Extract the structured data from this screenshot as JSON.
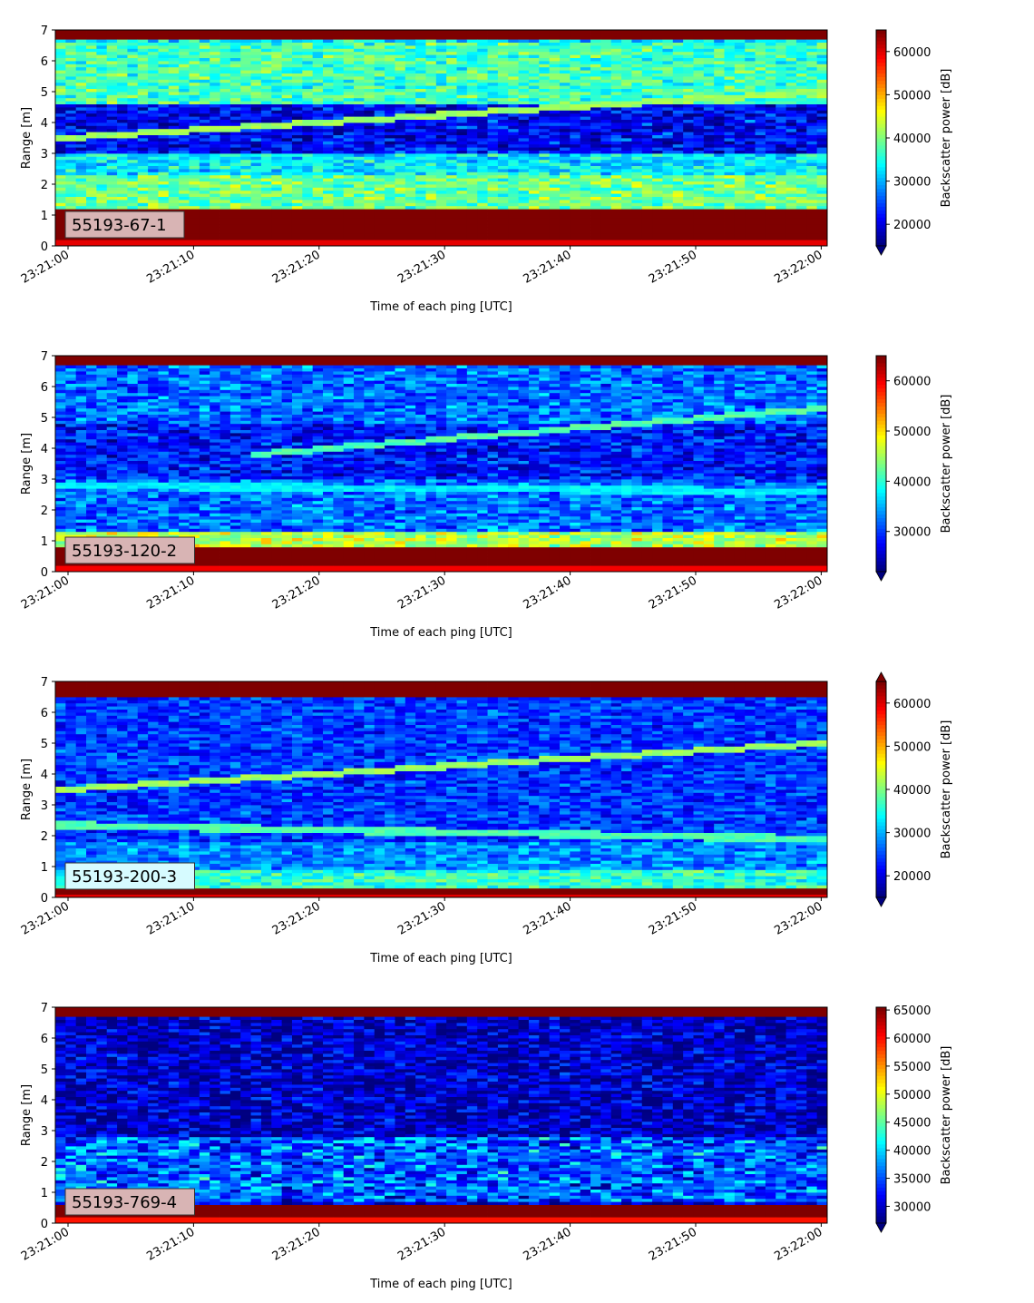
{
  "colors": {
    "jet": [
      "#00007f",
      "#0000ff",
      "#007fff",
      "#00ffff",
      "#7fff7f",
      "#ffff00",
      "#ff7f00",
      "#ff0000",
      "#7f0000"
    ],
    "label_box": "#d8b4b4",
    "label_box_alt": "#fff8c8",
    "label_box_cyan": "#d6fbff"
  },
  "chart_data": [
    {
      "type": "heatmap",
      "panel_label": "55193-67-1",
      "xlabel": "Time of each ping [UTC]",
      "ylabel": "Range [m]",
      "xticks": [
        "23:21:00",
        "23:21:10",
        "23:21:20",
        "23:21:30",
        "23:21:40",
        "23:21:50",
        "23:22:00"
      ],
      "yticks": [
        "0",
        "1",
        "2",
        "3",
        "4",
        "5",
        "6",
        "7"
      ],
      "ylim": [
        0,
        7
      ],
      "colorbar_label": "Backscatter power [dB]",
      "colorbar_ticks": [
        "20000",
        "30000",
        "40000",
        "50000",
        "60000"
      ],
      "colorbar_range": [
        15000,
        65000
      ],
      "colorbar_extend": "min",
      "label_style": "pink",
      "features": {
        "bottom_red_band": [
          0.2,
          1.15
        ],
        "top_red_band": [
          6.7,
          7.0
        ],
        "rising_track": {
          "start_range": 3.5,
          "end_range": 5.0
        },
        "background_low": 30000,
        "background_high": 36000
      }
    },
    {
      "type": "heatmap",
      "panel_label": "55193-120-2",
      "xlabel": "Time of each ping [UTC]",
      "ylabel": "Range [m]",
      "xticks": [
        "23:21:00",
        "23:21:10",
        "23:21:20",
        "23:21:30",
        "23:21:40",
        "23:21:50",
        "23:22:00"
      ],
      "yticks": [
        "0",
        "1",
        "2",
        "3",
        "4",
        "5",
        "6",
        "7"
      ],
      "ylim": [
        0,
        7
      ],
      "colorbar_label": "Backscatter power [dB]",
      "colorbar_ticks": [
        "30000",
        "40000",
        "50000",
        "60000"
      ],
      "colorbar_range": [
        22000,
        65000
      ],
      "colorbar_extend": "min",
      "label_style": "pink",
      "features": {
        "bottom_red_band": [
          0.2,
          0.8
        ],
        "top_red_band": [
          6.7,
          7.0
        ],
        "rising_track": {
          "start_range": 3.8,
          "end_range": 5.3,
          "start_fraction": 0.25
        },
        "flat_track": {
          "start_range": 2.8,
          "end_range": 2.6
        },
        "background_low": 30000,
        "background_high": 34000
      }
    },
    {
      "type": "heatmap",
      "panel_label": "55193-200-3",
      "xlabel": "Time of each ping [UTC]",
      "ylabel": "Range [m]",
      "xticks": [
        "23:21:00",
        "23:21:10",
        "23:21:20",
        "23:21:30",
        "23:21:40",
        "23:21:50",
        "23:22:00"
      ],
      "yticks": [
        "0",
        "1",
        "2",
        "3",
        "4",
        "5",
        "6",
        "7"
      ],
      "ylim": [
        0,
        7
      ],
      "colorbar_label": "Backscatter power [dB]",
      "colorbar_ticks": [
        "20000",
        "30000",
        "40000",
        "50000",
        "60000"
      ],
      "colorbar_range": [
        15000,
        65000
      ],
      "colorbar_extend": "both",
      "label_style": "cyan",
      "features": {
        "bottom_red_band": [
          0.1,
          0.3
        ],
        "top_red_band": [
          6.5,
          7.0
        ],
        "rising_track": {
          "start_range": 3.5,
          "end_range": 5.0
        },
        "flat_track": {
          "start_range": 2.35,
          "end_range": 1.9
        },
        "background_low": 22000,
        "background_high": 26000
      }
    },
    {
      "type": "heatmap",
      "panel_label": "55193-769-4",
      "xlabel": "Time of each ping [UTC]",
      "ylabel": "Range [m]",
      "xticks": [
        "23:21:00",
        "23:21:10",
        "23:21:20",
        "23:21:30",
        "23:21:40",
        "23:21:50",
        "23:22:00"
      ],
      "yticks": [
        "0",
        "1",
        "2",
        "3",
        "4",
        "5",
        "6",
        "7"
      ],
      "ylim": [
        0,
        7
      ],
      "colorbar_label": "Backscatter power [dB]",
      "colorbar_ticks": [
        "30000",
        "35000",
        "40000",
        "45000",
        "50000",
        "55000",
        "60000",
        "65000"
      ],
      "colorbar_range": [
        27000,
        65500
      ],
      "colorbar_extend": "min",
      "label_style": "pink",
      "features": {
        "bottom_red_band": [
          0.2,
          0.6
        ],
        "top_red_band": [
          6.65,
          7.0
        ],
        "background_low": 30000,
        "background_high": 32000,
        "noise_zone": [
          0.7,
          2.8
        ]
      }
    }
  ]
}
